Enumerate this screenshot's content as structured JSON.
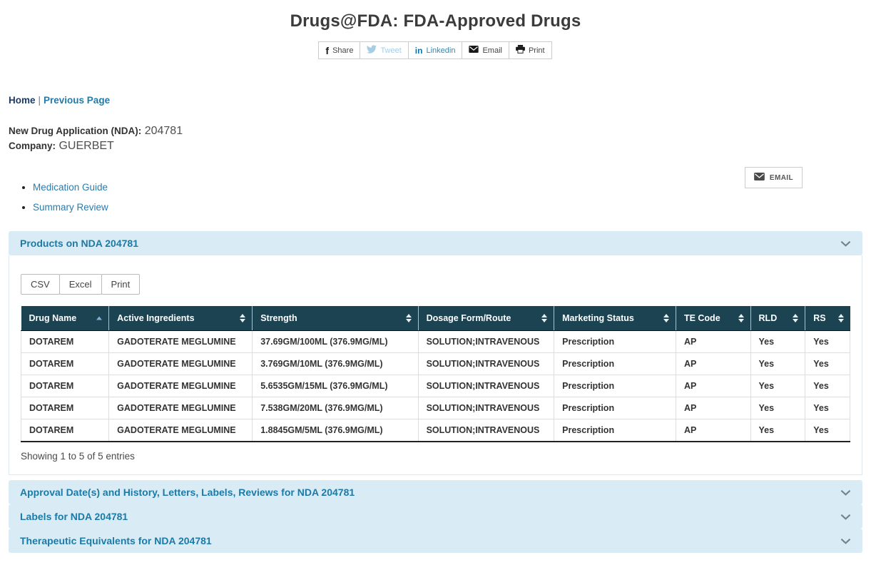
{
  "page": {
    "title": "Drugs@FDA: FDA-Approved Drugs"
  },
  "share": [
    {
      "label": "Share"
    },
    {
      "label": "Tweet"
    },
    {
      "label": "Linkedin"
    },
    {
      "label": "Email"
    },
    {
      "label": "Print"
    }
  ],
  "breadcrumb": {
    "home": "Home",
    "separator": "|",
    "previous": "Previous Page"
  },
  "application": {
    "nda_label": "New Drug Application (NDA):",
    "nda_value": "204781",
    "company_label": "Company:",
    "company_value": "GUERBET"
  },
  "email_button": {
    "label": "EMAIL"
  },
  "quick_links": [
    "Medication Guide",
    "Summary Review"
  ],
  "accordions": {
    "products": {
      "title": "Products on NDA 204781"
    },
    "approval": {
      "title": "Approval Date(s) and History, Letters, Labels, Reviews for NDA 204781"
    },
    "labels": {
      "title": "Labels for NDA 204781"
    },
    "therapeutic": {
      "title": "Therapeutic Equivalents for NDA 204781"
    }
  },
  "products_table": {
    "export_buttons": [
      "CSV",
      "Excel",
      "Print"
    ],
    "columns": [
      "Drug Name",
      "Active Ingredients",
      "Strength",
      "Dosage Form/Route",
      "Marketing Status",
      "TE Code",
      "RLD",
      "RS"
    ],
    "sorted_column": "Drug Name",
    "sort_direction": "asc",
    "rows": [
      [
        "DOTAREM",
        "GADOTERATE MEGLUMINE",
        "37.69GM/100ML (376.9MG/ML)",
        "SOLUTION;INTRAVENOUS",
        "Prescription",
        "AP",
        "Yes",
        "Yes"
      ],
      [
        "DOTAREM",
        "GADOTERATE MEGLUMINE",
        "3.769GM/10ML (376.9MG/ML)",
        "SOLUTION;INTRAVENOUS",
        "Prescription",
        "AP",
        "Yes",
        "Yes"
      ],
      [
        "DOTAREM",
        "GADOTERATE MEGLUMINE",
        "5.6535GM/15ML (376.9MG/ML)",
        "SOLUTION;INTRAVENOUS",
        "Prescription",
        "AP",
        "Yes",
        "Yes"
      ],
      [
        "DOTAREM",
        "GADOTERATE MEGLUMINE",
        "7.538GM/20ML (376.9MG/ML)",
        "SOLUTION;INTRAVENOUS",
        "Prescription",
        "AP",
        "Yes",
        "Yes"
      ],
      [
        "DOTAREM",
        "GADOTERATE MEGLUMINE",
        "1.8845GM/5ML (376.9MG/ML)",
        "SOLUTION;INTRAVENOUS",
        "Prescription",
        "AP",
        "Yes",
        "Yes"
      ]
    ],
    "summary": "Showing 1 to 5 of 5 entries"
  },
  "colors": {
    "table_header_bg": "#1b4351",
    "accordion_bg": "#d9ecf6",
    "accordion_text": "#1b7aa6",
    "link_teal": "#2b7bab",
    "link_navy": "#1a3a63",
    "linkedin_blue": "#0077b5",
    "twitter_blue": "#a5cee5"
  }
}
